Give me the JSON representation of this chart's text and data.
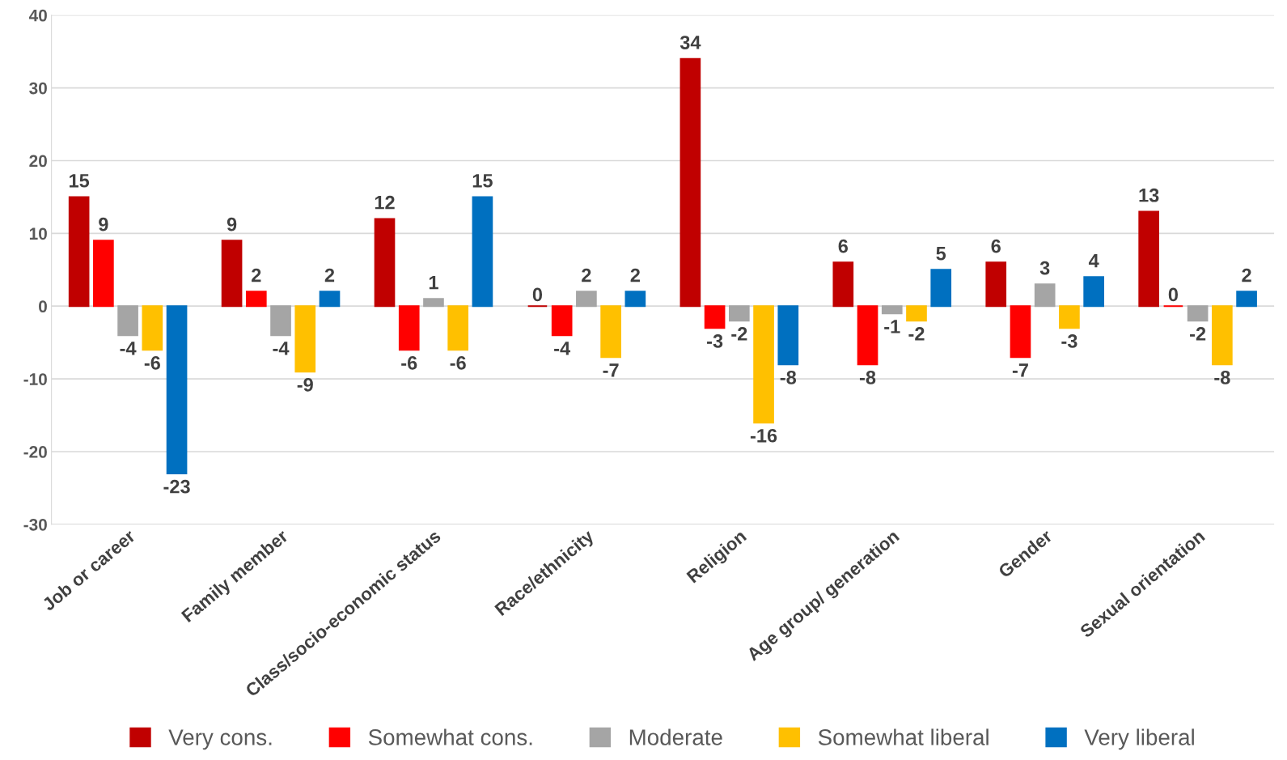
{
  "chart_data": {
    "type": "bar",
    "categories": [
      "Job or career",
      "Family member",
      "Class/socio-economic status",
      "Race/ethnicity",
      "Religion",
      "Age group/ generation",
      "Gender",
      "Sexual orientation"
    ],
    "series": [
      {
        "name": "Very cons.",
        "color": "#c00000",
        "values": [
          15,
          9,
          12,
          0,
          34,
          6,
          6,
          13
        ]
      },
      {
        "name": "Somewhat cons.",
        "color": "#ff0000",
        "values": [
          9,
          2,
          -6,
          -4,
          -3,
          -8,
          -7,
          0
        ]
      },
      {
        "name": "Moderate",
        "color": "#a5a5a5",
        "values": [
          -4,
          -4,
          1,
          2,
          -2,
          -1,
          3,
          -2
        ]
      },
      {
        "name": "Somewhat liberal",
        "color": "#ffc000",
        "values": [
          -6,
          -9,
          -6,
          -7,
          -16,
          -2,
          -3,
          -8
        ]
      },
      {
        "name": "Very liberal",
        "color": "#0070c0",
        "values": [
          -23,
          2,
          15,
          2,
          -8,
          5,
          4,
          2
        ]
      }
    ],
    "ylim": [
      -30,
      40
    ],
    "yticks": [
      -30,
      -20,
      -10,
      0,
      10,
      20,
      30,
      40
    ],
    "grid": "y",
    "legend": "bottom",
    "data_labels": true
  }
}
